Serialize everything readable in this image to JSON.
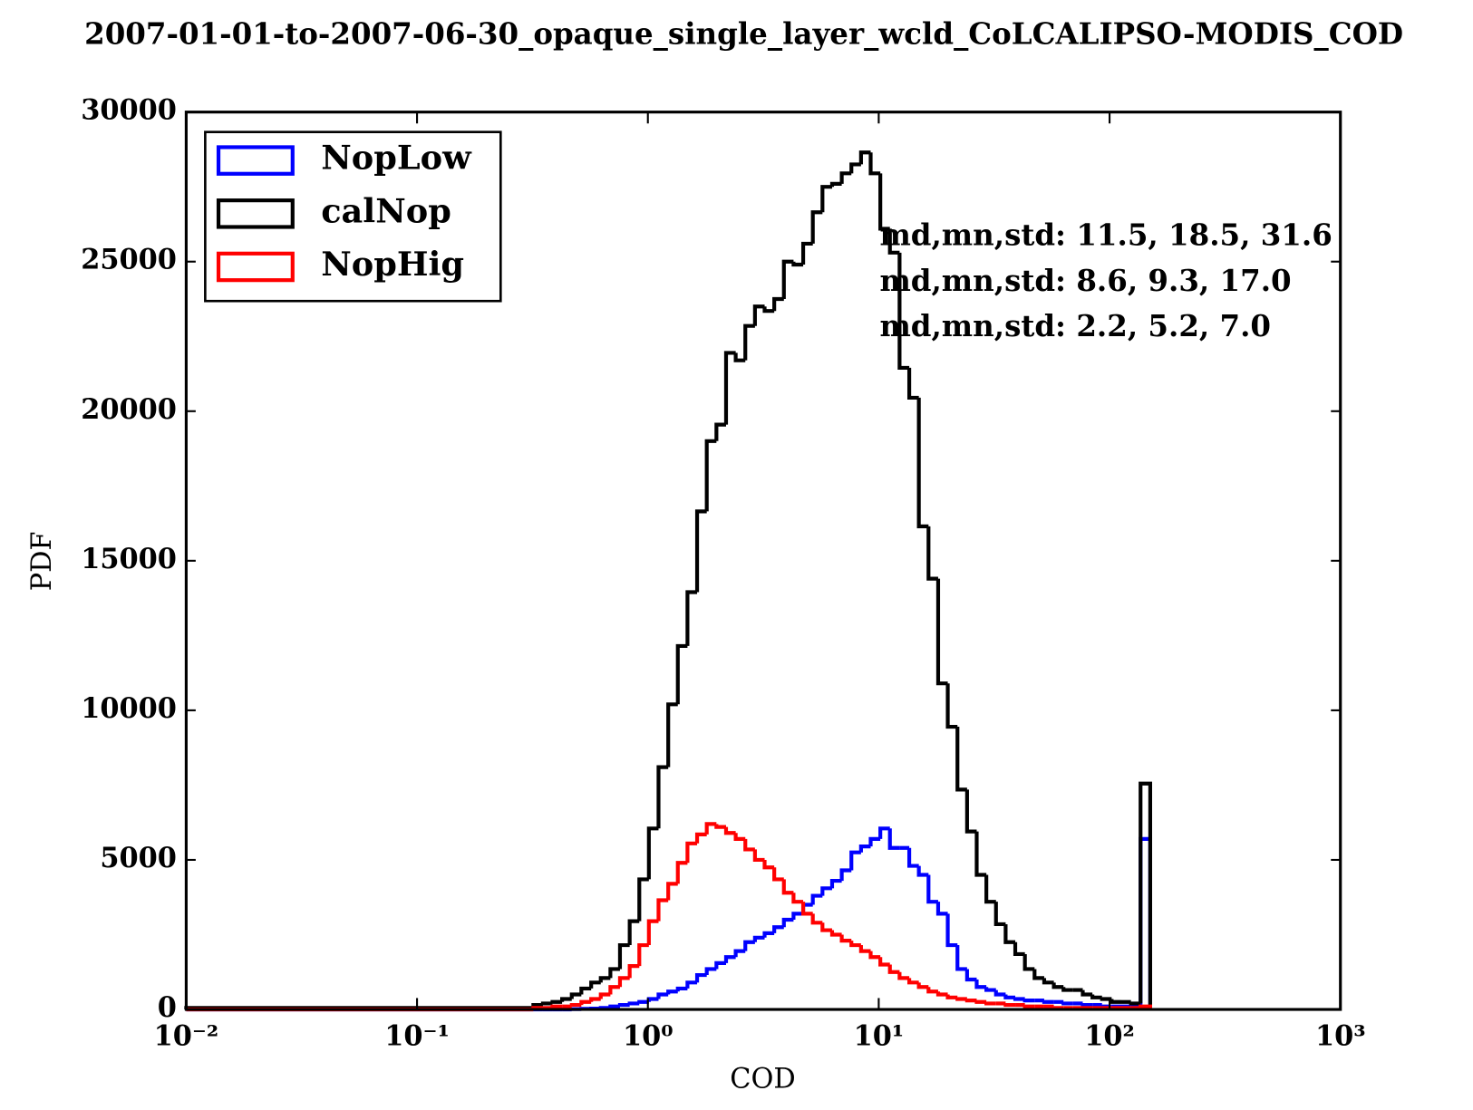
{
  "chart_data": {
    "type": "histogram",
    "title": "2007-01-01-to-2007-06-30_opaque_single_layer_wcld_CoLCALIPSO-MODIS_COD",
    "x_label": "COD",
    "y_label": "PDF",
    "xscale": "log",
    "histtype": "step",
    "legend": "upper left",
    "xlim": [
      0.01,
      1000
    ],
    "ylim": [
      0,
      30000
    ],
    "xticks": [
      {
        "value": 0.01,
        "label": "10⁻²"
      },
      {
        "value": 0.1,
        "label": "10⁻¹"
      },
      {
        "value": 1,
        "label": "10⁰"
      },
      {
        "value": 10,
        "label": "10¹"
      },
      {
        "value": 100,
        "label": "10²"
      },
      {
        "value": 1000,
        "label": "10³"
      }
    ],
    "yticks": [
      0,
      5000,
      10000,
      15000,
      20000,
      25000,
      30000
    ],
    "bins": [
      0.01,
      0.319,
      0.351,
      0.386,
      0.425,
      0.468,
      0.515,
      0.568,
      0.625,
      0.688,
      0.757,
      0.834,
      0.918,
      1.01,
      1.112,
      1.225,
      1.348,
      1.484,
      1.634,
      1.799,
      1.981,
      2.181,
      2.401,
      2.643,
      2.91,
      3.204,
      3.527,
      3.883,
      4.275,
      4.707,
      5.182,
      5.705,
      6.281,
      6.915,
      7.613,
      8.381,
      9.227,
      10.16,
      11.18,
      12.31,
      13.56,
      14.92,
      16.43,
      18.09,
      19.91,
      21.93,
      24.14,
      26.57,
      29.26,
      32.21,
      35.46,
      39.04,
      42.98,
      47.32,
      52.1,
      57.36,
      63.15,
      69.52,
      76.54,
      84.27,
      92.77,
      102.1,
      112.4,
      123.8,
      136.2,
      150.0
    ],
    "series": [
      {
        "name": "NopLow",
        "color": "#0000ff",
        "values": [
          0,
          0,
          0,
          0,
          0,
          10,
          20,
          30,
          50,
          100,
          150,
          200,
          250,
          350,
          500,
          600,
          700,
          900,
          1150,
          1350,
          1550,
          1750,
          1950,
          2250,
          2400,
          2550,
          2750,
          3000,
          3200,
          3500,
          3800,
          4050,
          4300,
          4650,
          5250,
          5450,
          5700,
          6050,
          5400,
          5400,
          4800,
          4500,
          3600,
          3200,
          2150,
          1350,
          1000,
          750,
          650,
          500,
          400,
          350,
          300,
          300,
          250,
          250,
          200,
          200,
          150,
          150,
          100,
          100,
          100,
          100,
          5700
        ]
      },
      {
        "name": "calNop",
        "color": "#000000",
        "values": [
          50,
          150,
          200,
          250,
          350,
          500,
          700,
          900,
          1050,
          1350,
          2150,
          2950,
          4350,
          6050,
          8100,
          10200,
          12150,
          13950,
          16650,
          19000,
          19550,
          21950,
          21700,
          22850,
          23500,
          23350,
          23750,
          25000,
          24900,
          25600,
          26650,
          27500,
          27600,
          27950,
          28250,
          28650,
          27950,
          26100,
          25300,
          21450,
          20450,
          16150,
          14400,
          10900,
          9450,
          7350,
          5950,
          4500,
          3600,
          2850,
          2250,
          1850,
          1350,
          1050,
          900,
          750,
          650,
          650,
          500,
          400,
          350,
          250,
          250,
          200,
          7550
        ]
      },
      {
        "name": "NopHig",
        "color": "#ff0000",
        "values": [
          0,
          50,
          50,
          100,
          100,
          150,
          250,
          350,
          500,
          750,
          1050,
          1450,
          2150,
          2950,
          3650,
          4200,
          4900,
          5550,
          5850,
          6200,
          6100,
          5900,
          5700,
          5350,
          5000,
          4750,
          4350,
          3900,
          3600,
          3200,
          2900,
          2650,
          2500,
          2300,
          2150,
          1950,
          1750,
          1500,
          1250,
          1050,
          900,
          750,
          600,
          500,
          400,
          350,
          300,
          250,
          200,
          200,
          150,
          150,
          100,
          100,
          100,
          50,
          50,
          50,
          50,
          50,
          50,
          50,
          50,
          50,
          100
        ]
      }
    ],
    "annotations": [
      {
        "text": "md,mn,std: 11.5, 18.5, 31.6",
        "color": "#0000ff"
      },
      {
        "text": "md,mn,std: 8.6, 9.3, 17.0",
        "color": "#000000"
      },
      {
        "text": "md,mn,std: 2.2, 5.2, 7.0",
        "color": "#ff0000"
      }
    ]
  }
}
